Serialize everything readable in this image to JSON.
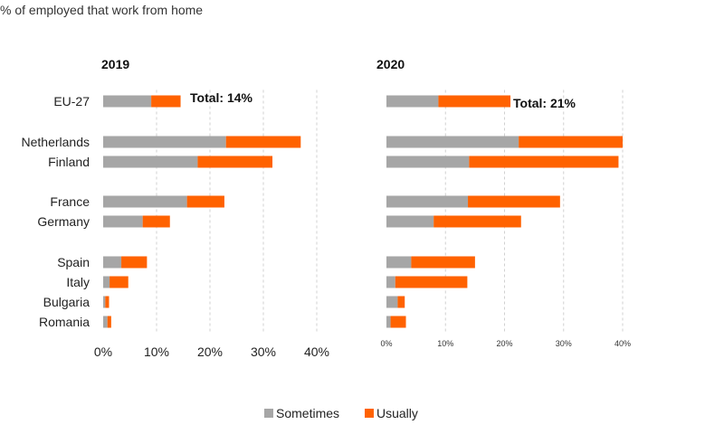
{
  "chart_data": {
    "type": "bar",
    "orientation": "horizontal",
    "stacked": true,
    "subtitle": "% of employed that work from home",
    "categories": [
      "EU-27",
      "Netherlands",
      "Finland",
      "France",
      "Germany",
      "Spain",
      "Italy",
      "Bulgaria",
      "Romania"
    ],
    "xlim": [
      0,
      40
    ],
    "xticks": [
      "0%",
      "10%",
      "20%",
      "30%",
      "40%"
    ],
    "grid": true,
    "legend_position": "bottom",
    "colors": {
      "Sometimes": "#a6a6a6",
      "Usually": "#ff6200"
    },
    "panels": [
      {
        "title": "2019",
        "total_label": "Total: 14%",
        "series": [
          {
            "name": "Sometimes",
            "values": [
              9,
              23,
              17.7,
              15.7,
              7.4,
              3.4,
              1.2,
              0.4,
              0.8
            ]
          },
          {
            "name": "Usually",
            "values": [
              5.5,
              14,
              14,
              7,
              5.1,
              4.8,
              3.5,
              0.7,
              0.7
            ]
          }
        ]
      },
      {
        "title": "2020",
        "total_label": "Total: 21%",
        "series": [
          {
            "name": "Sometimes",
            "values": [
              8.8,
              22.4,
              14,
              13.8,
              8,
              4.2,
              1.5,
              1.9,
              0.7
            ]
          },
          {
            "name": "Usually",
            "values": [
              12.2,
              17.6,
              25.3,
              15.6,
              14.8,
              10.8,
              12.2,
              1.2,
              2.6
            ]
          }
        ]
      }
    ]
  }
}
